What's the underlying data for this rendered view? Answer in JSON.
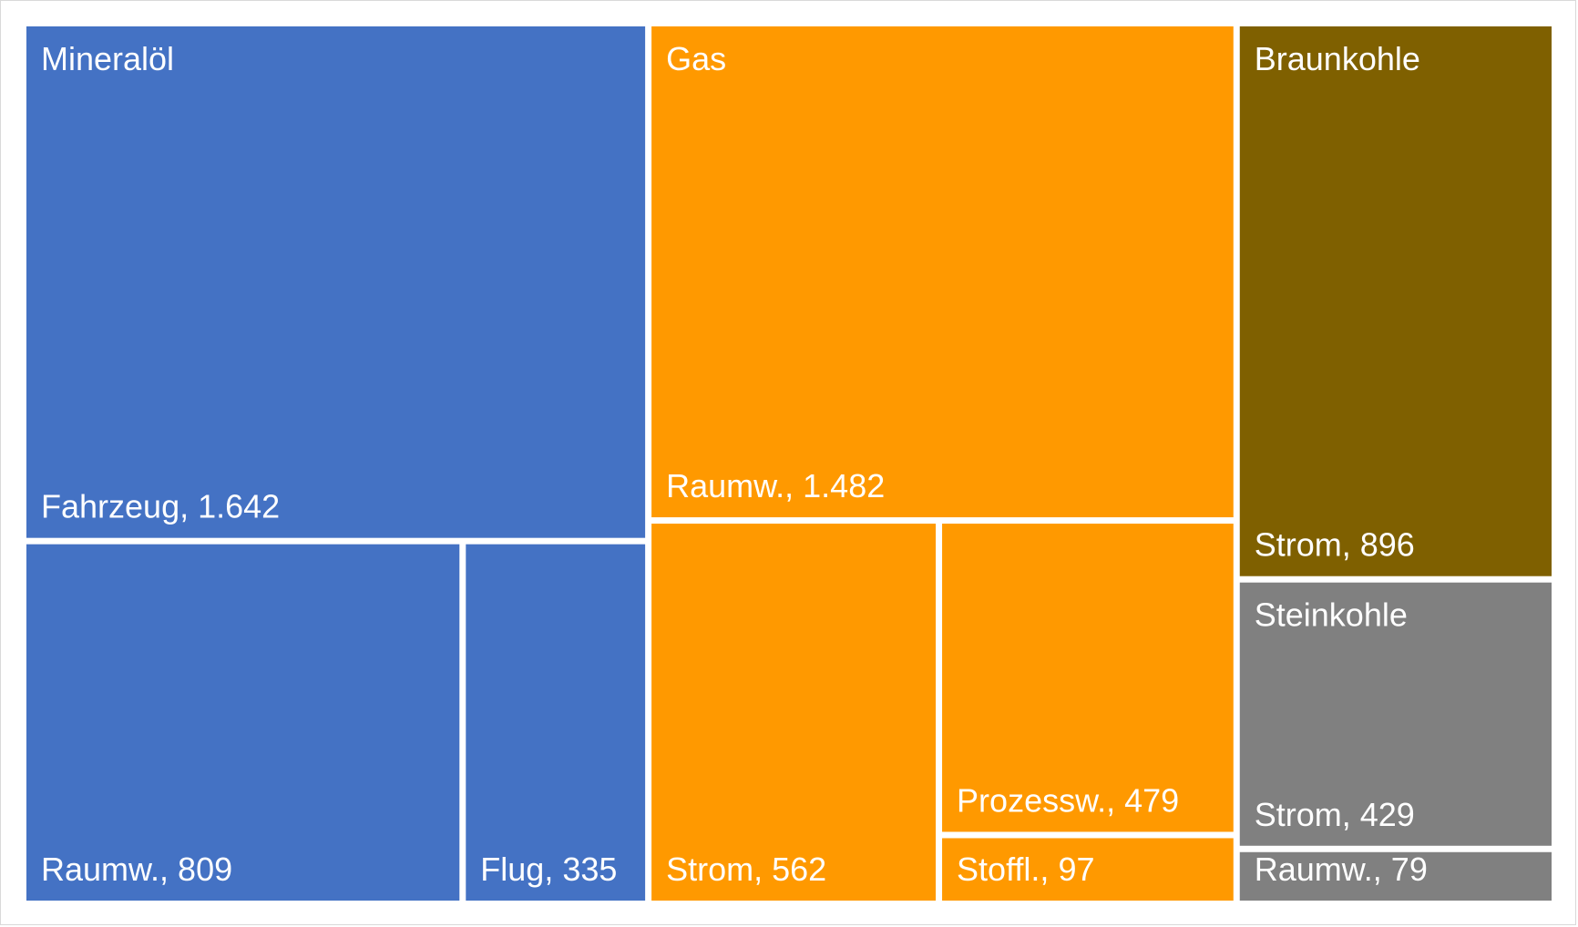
{
  "chart_data": {
    "type": "treemap",
    "legend": "none",
    "groups": [
      {
        "name": "Mineralöl",
        "color": "#4472C4",
        "children": [
          {
            "label": "Fahrzeug, 1.642",
            "value": 1642
          },
          {
            "label": "Raumw., 809",
            "value": 809
          },
          {
            "label": "Flug, 335",
            "value": 335
          }
        ]
      },
      {
        "name": "Gas",
        "color": "#FF9900",
        "children": [
          {
            "label": "Raumw., 1.482",
            "value": 1482
          },
          {
            "label": "Strom, 562",
            "value": 562
          },
          {
            "label": "Prozessw., 479",
            "value": 479
          },
          {
            "label": "Stoffl., 97",
            "value": 97
          }
        ]
      },
      {
        "name": "Braunkohle",
        "color": "#7F6000",
        "children": [
          {
            "label": "Strom, 896",
            "value": 896
          }
        ]
      },
      {
        "name": "Steinkohle",
        "color": "#808080",
        "children": [
          {
            "label": "Strom, 429",
            "value": 429
          },
          {
            "label": "Raumw., 79",
            "value": 79
          }
        ]
      }
    ]
  }
}
